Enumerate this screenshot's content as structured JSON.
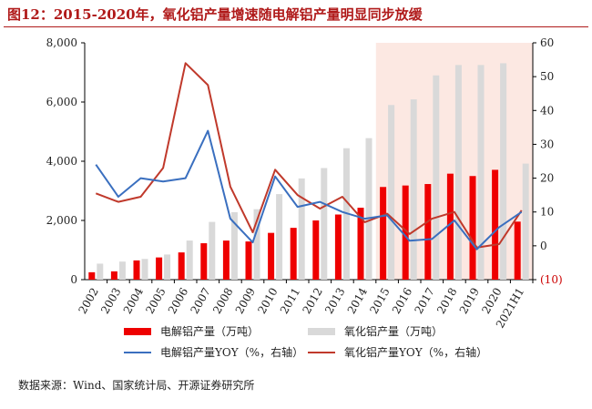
{
  "header": {
    "title": "图12：2015-2020年，氧化铝产量增速随电解铝产量明显同步放缓"
  },
  "source": "数据来源：Wind、国家统计局、开源证券研究所",
  "colors": {
    "electrolytic_bar": "#ee0000",
    "alumina_bar": "#d9d9d9",
    "electrolytic_yoy": "#3a6fbf",
    "alumina_yoy": "#c0392b",
    "highlight_band": "#fce8e2",
    "title": "#b01a1a"
  },
  "chart_data": {
    "type": "bar+line",
    "categories": [
      "2002",
      "2003",
      "2004",
      "2005",
      "2006",
      "2007",
      "2008",
      "2009",
      "2010",
      "2011",
      "2012",
      "2013",
      "2014",
      "2015",
      "2016",
      "2017",
      "2018",
      "2019",
      "2020",
      "2021H1"
    ],
    "highlight_range": [
      "2015",
      "2021H1"
    ],
    "y_left": {
      "min": 0,
      "max": 8000,
      "ticks": [
        "0",
        "2,000",
        "4,000",
        "6,000",
        "8,000"
      ]
    },
    "y_right": {
      "min": -10,
      "max": 60,
      "ticks": [
        "(10)",
        "0",
        "10",
        "20",
        "30",
        "40",
        "50",
        "60"
      ]
    },
    "series": [
      {
        "name": "电解铝产量（万吨）",
        "kind": "bar",
        "axis": "left",
        "values": [
          250,
          280,
          650,
          750,
          920,
          1230,
          1320,
          1290,
          1580,
          1750,
          2000,
          2200,
          2430,
          3130,
          3180,
          3230,
          3580,
          3500,
          3710,
          1960
        ]
      },
      {
        "name": "氧化铝产量（万吨）",
        "kind": "bar",
        "axis": "left",
        "values": [
          540,
          610,
          700,
          850,
          1320,
          1950,
          2280,
          2380,
          2890,
          3420,
          3770,
          4440,
          4780,
          5900,
          6090,
          6900,
          7250,
          7250,
          7310,
          3920
        ]
      },
      {
        "name": "电解铝产量YOY（%，右轴）",
        "kind": "line",
        "axis": "right",
        "values": [
          24,
          14.5,
          20,
          19,
          20,
          34,
          8,
          1,
          20.5,
          11.5,
          13,
          10,
          8,
          9,
          1.5,
          2,
          7.5,
          -1,
          5.5,
          10
        ]
      },
      {
        "name": "氧化铝产量YOY（%，右轴）",
        "kind": "line",
        "axis": "right",
        "values": [
          15.5,
          13,
          14.5,
          23,
          54,
          47.5,
          17.5,
          4,
          22.5,
          15,
          11,
          14.5,
          7,
          9.5,
          3.5,
          8,
          10,
          -0.5,
          0.5,
          10.5
        ]
      }
    ]
  }
}
